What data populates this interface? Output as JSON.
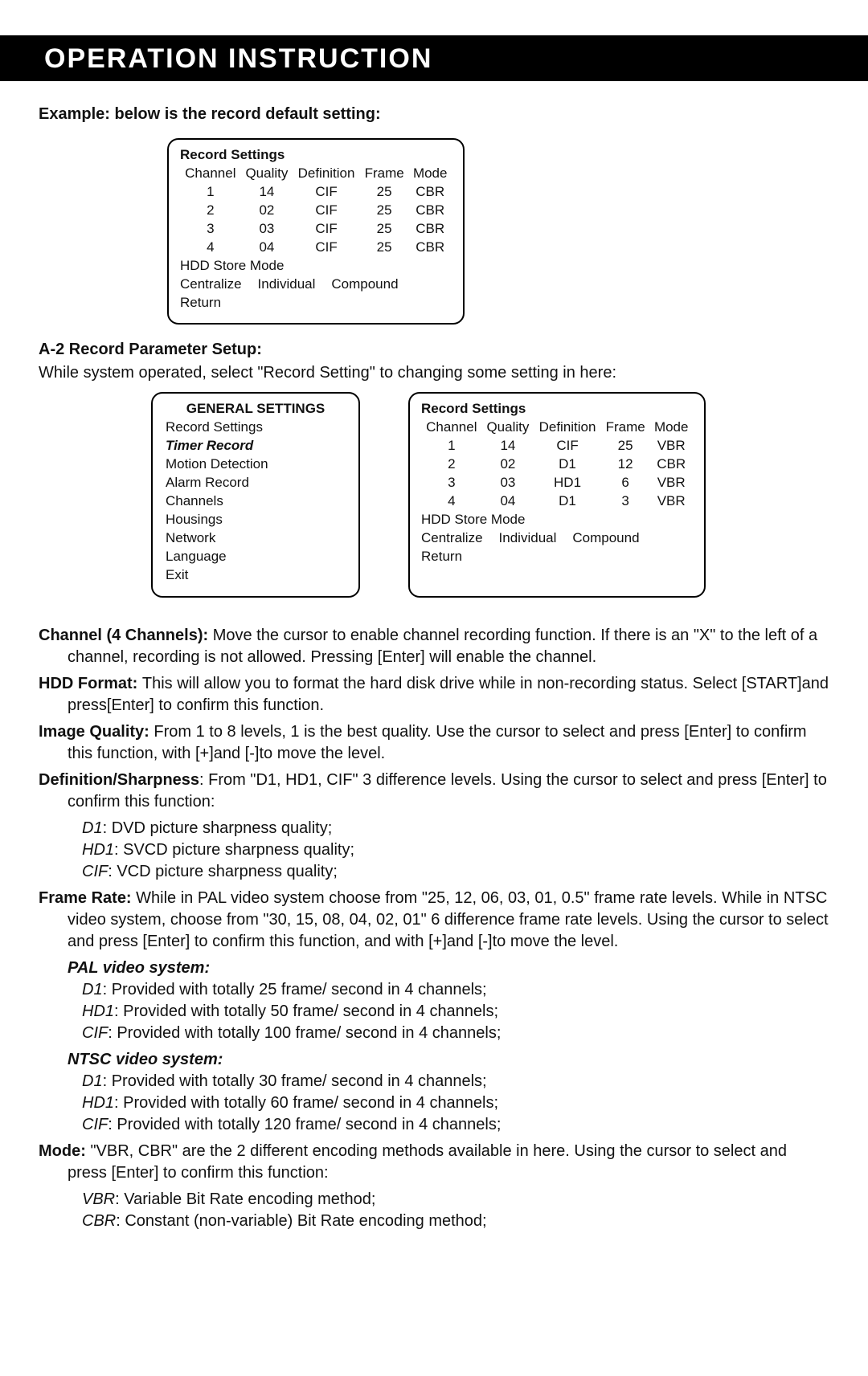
{
  "header": {
    "title": "OPERATION INSTRUCTION"
  },
  "intro": {
    "example_heading": "Example: below is the record default setting:",
    "a2_heading": "A-2 Record Parameter Setup:",
    "a2_sub": "While system operated, select \"Record Setting\" to changing some setting in here:"
  },
  "box_default": {
    "title": "Record Settings",
    "columns": [
      "Channel",
      "Quality",
      "Definition",
      "Frame",
      "Mode"
    ],
    "rows": [
      [
        "1",
        "14",
        "CIF",
        "25",
        "CBR"
      ],
      [
        "2",
        "02",
        "CIF",
        "25",
        "CBR"
      ],
      [
        "3",
        "03",
        "CIF",
        "25",
        "CBR"
      ],
      [
        "4",
        "04",
        "CIF",
        "25",
        "CBR"
      ]
    ],
    "hdd_label": "HDD Store Mode",
    "modes": [
      "Centralize",
      "Individual",
      "Compound"
    ],
    "return": "Return"
  },
  "box_general": {
    "title": "GENERAL SETTINGS",
    "items": [
      {
        "label": "Record Settings",
        "selected": false
      },
      {
        "label": "Timer Record",
        "selected": true
      },
      {
        "label": "Motion Detection",
        "selected": false
      },
      {
        "label": "Alarm Record",
        "selected": false
      },
      {
        "label": "Channels",
        "selected": false
      },
      {
        "label": "Housings",
        "selected": false
      },
      {
        "label": "Network",
        "selected": false
      },
      {
        "label": "Language",
        "selected": false
      },
      {
        "label": "Exit",
        "selected": false
      }
    ]
  },
  "box_record2": {
    "title": "Record Settings",
    "columns": [
      "Channel",
      "Quality",
      "Definition",
      "Frame",
      "Mode"
    ],
    "rows": [
      [
        "1",
        "14",
        "CIF",
        "25",
        "VBR"
      ],
      [
        "2",
        "02",
        "D1",
        "12",
        "CBR"
      ],
      [
        "3",
        "03",
        "HD1",
        "6",
        "VBR"
      ],
      [
        "4",
        "04",
        "D1",
        "3",
        "VBR"
      ]
    ],
    "hdd_label": "HDD Store Mode",
    "modes": [
      "Centralize",
      "Individual",
      "Compound"
    ],
    "return": "Return"
  },
  "definitions": {
    "channel": {
      "label": "Channel (4 Channels): ",
      "text": "Move the cursor to enable channel recording function. If there is an \"X\" to the left of a channel, recording is not allowed. Pressing [Enter] will enable the channel."
    },
    "hdd": {
      "label": "HDD Format: ",
      "text": "This will allow you to format the hard disk drive while in non-recording status. Select [START]and press[Enter] to confirm this function."
    },
    "image": {
      "label": "Image Quality: ",
      "text": "From 1 to 8 levels, 1 is the best quality. Use the cursor to select and press [Enter] to confirm this function, with [+]and [-]to move the level."
    },
    "sharpness": {
      "label": "Definition/Sharpness",
      "text": ": From \"D1, HD1, CIF\" 3 difference levels. Using the cursor to select and press [Enter] to confirm this function:",
      "sub": [
        {
          "k": "D1",
          "v": ": DVD picture sharpness quality;"
        },
        {
          "k": "HD1",
          "v": ": SVCD picture sharpness quality;"
        },
        {
          "k": "CIF",
          "v": ": VCD picture sharpness quality;"
        }
      ]
    },
    "frame": {
      "label": "Frame Rate: ",
      "text": "While in PAL video system choose from \"25, 12, 06, 03, 01, 0.5\" frame rate levels. While in NTSC video system, choose from \"30, 15, 08, 04, 02, 01\" 6 difference frame rate levels. Using the cursor to select and press [Enter] to confirm this function, and with [+]and [-]to move the level."
    },
    "pal": {
      "heading": "PAL video system:",
      "lines": [
        {
          "k": "D1",
          "v": ": Provided with totally 25 frame/ second in 4 channels;"
        },
        {
          "k": "HD1",
          "v": ": Provided with totally 50 frame/ second in 4 channels;"
        },
        {
          "k": "CIF",
          "v": ": Provided with totally 100 frame/ second in 4 channels;"
        }
      ]
    },
    "ntsc": {
      "heading": "NTSC video system:",
      "lines": [
        {
          "k": "D1",
          "v": ": Provided with totally 30 frame/ second in 4 channels;"
        },
        {
          "k": "HD1",
          "v": ": Provided with totally 60 frame/ second in 4 channels;"
        },
        {
          "k": "CIF",
          "v": ": Provided with totally 120 frame/ second in 4 channels;"
        }
      ]
    },
    "mode": {
      "label": "Mode: ",
      "text": "\"VBR, CBR\" are the 2 different encoding methods available in here. Using the cursor to select and press [Enter] to confirm this function:",
      "sub": [
        {
          "k": "VBR",
          "v": ": Variable Bit Rate encoding method;"
        },
        {
          "k": "CBR",
          "v": ": Constant (non-variable) Bit Rate encoding method;"
        }
      ]
    }
  }
}
